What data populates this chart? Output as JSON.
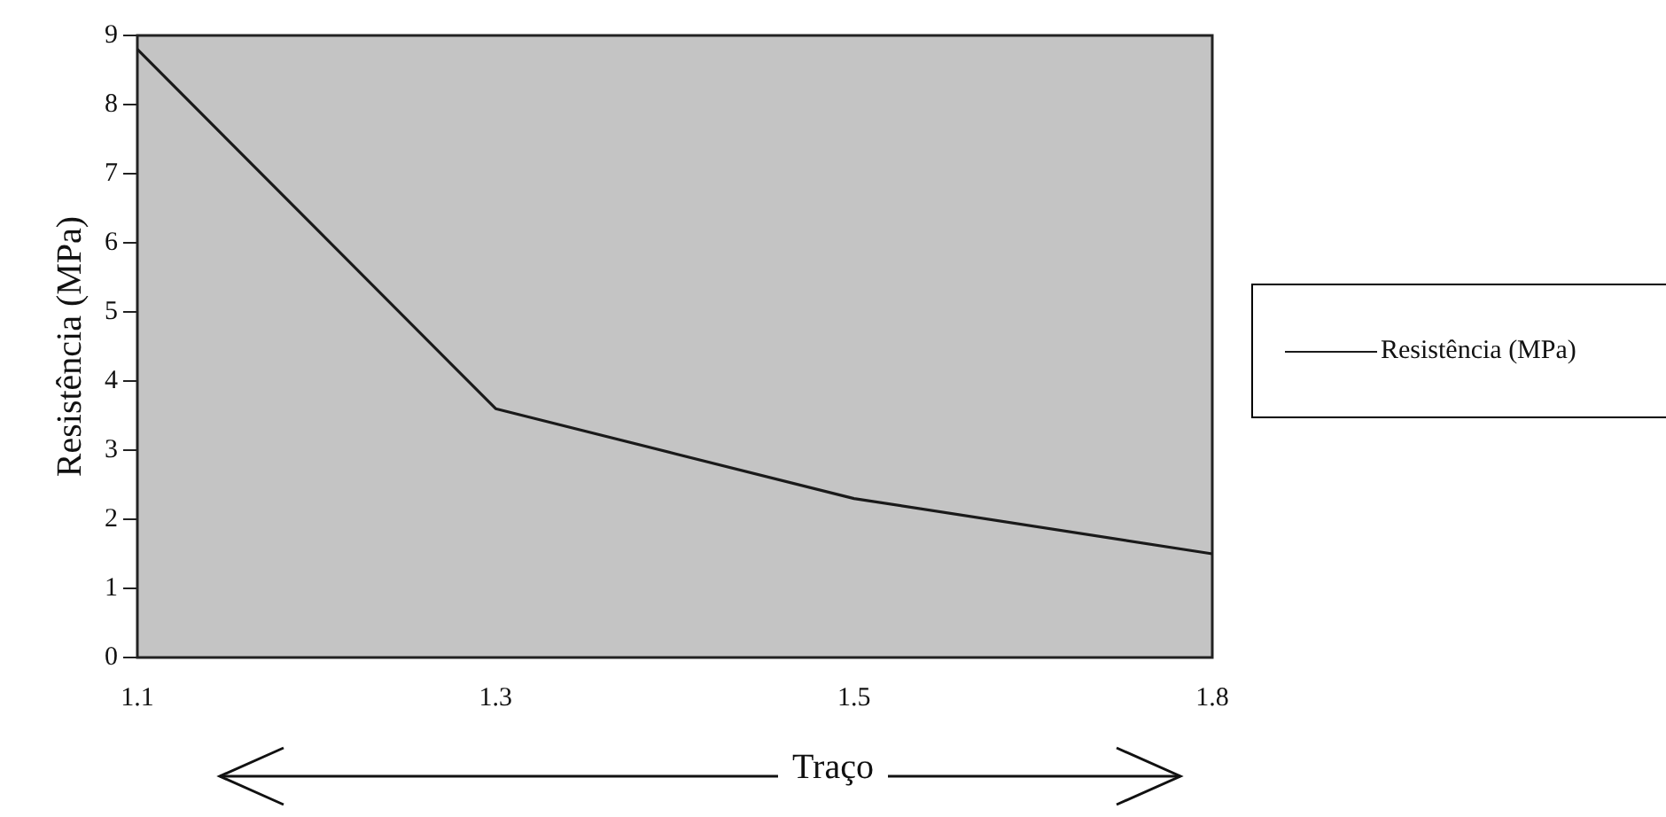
{
  "chart_data": {
    "type": "line",
    "xlabel": "Traço",
    "ylabel": "Resistência (MPa)",
    "categories": [
      "1.1",
      "1.3",
      "1.5",
      "1.8"
    ],
    "series": [
      {
        "name": "Resistência (MPa)",
        "color": "#1a1a1a",
        "values": [
          8.8,
          3.6,
          2.3,
          1.5
        ]
      }
    ],
    "ylim": [
      0,
      9
    ],
    "yticks": [
      0,
      1,
      2,
      3,
      4,
      5,
      6,
      7,
      8,
      9
    ],
    "grid": false,
    "legend": "right",
    "marker": "none",
    "line_style": "solid"
  }
}
